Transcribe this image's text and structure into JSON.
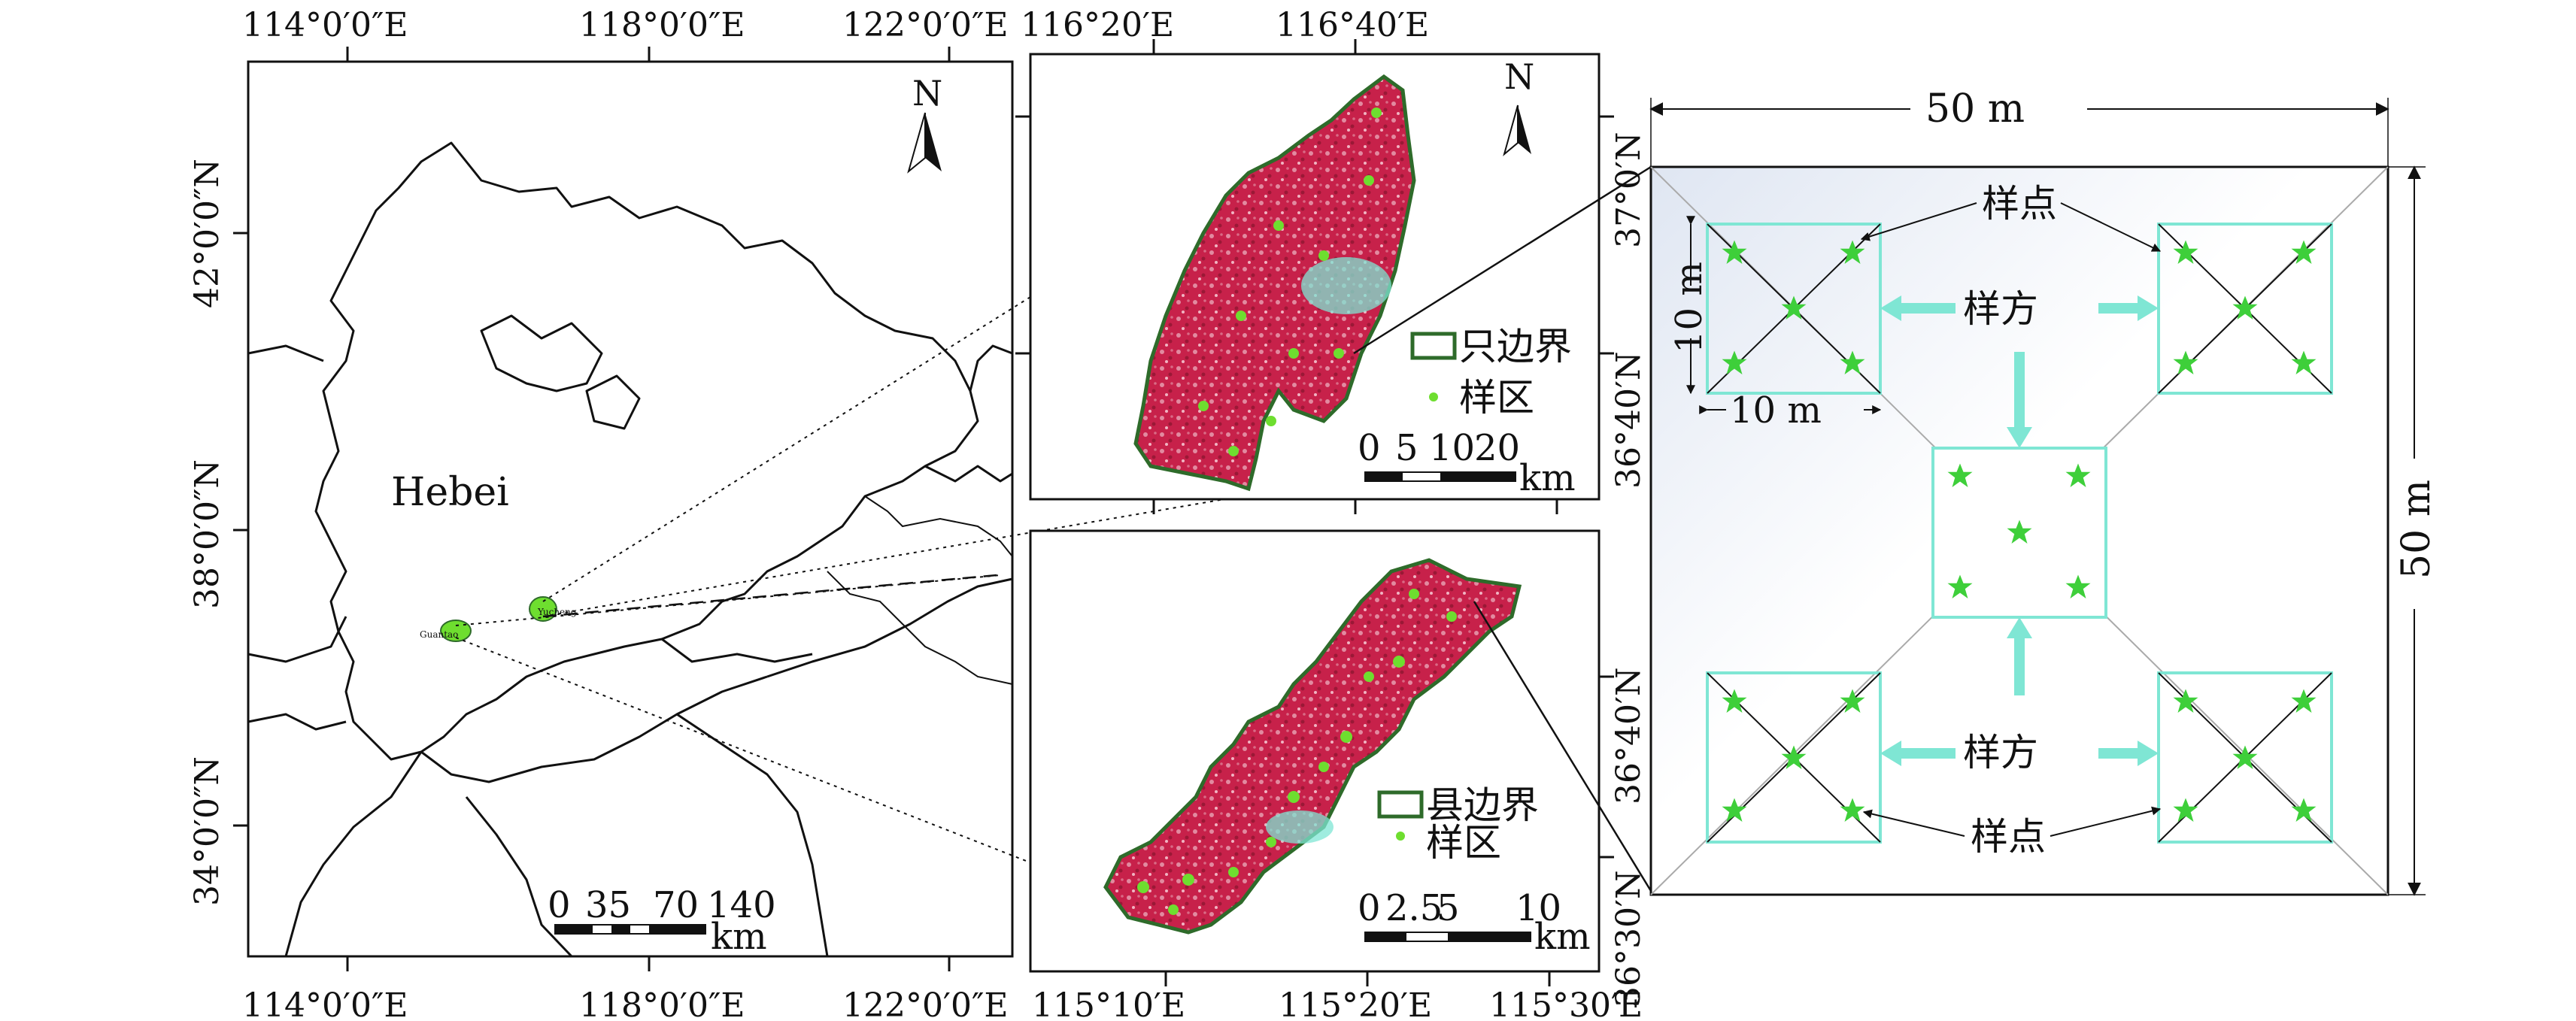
{
  "left_map": {
    "top_lon_labels": [
      "114°0′0″E",
      "118°0′0″E",
      "122°0′0″E"
    ],
    "bottom_lon_labels": [
      "114°0′0″E",
      "118°0′0″E",
      "122°0′0″E"
    ],
    "lat_labels": [
      "42°0′0″N",
      "38°0′0″N",
      "34°0′0″N"
    ],
    "province_label": "Hebei",
    "north_arrow": "N",
    "scalebar_ticks": [
      "0",
      "35",
      "70",
      "140"
    ],
    "scalebar_unit": "km",
    "city_labels": [
      "Guantao",
      "Yucheng"
    ]
  },
  "upper_inset": {
    "top_lon_labels": [
      "116°20′E",
      "116°40′E"
    ],
    "lat_labels": [
      "37°0′N",
      "36°40′N"
    ],
    "north_arrow": "N",
    "legend_boundary": "只边界",
    "legend_sample": "样区",
    "scalebar_ticks": [
      "0",
      "5",
      "10",
      "20"
    ],
    "scalebar_unit": "km"
  },
  "lower_inset": {
    "bottom_lon_labels": [
      "115°10′E",
      "115°20′E",
      "115°30′E"
    ],
    "lat_labels": [
      "36°40′N",
      "36°30′N"
    ],
    "legend_boundary": "县边界",
    "legend_sample": "样区",
    "scalebar_ticks": [
      "0",
      "2.5",
      "5",
      "10"
    ],
    "scalebar_unit": "km"
  },
  "plot_diagram": {
    "width_label": "50 m",
    "height_label": "50 m",
    "subplot_width_label": "10 m",
    "subplot_height_label": "10 m",
    "quadrat_label": "样方",
    "point_label": "样点"
  },
  "colors": {
    "quadrat_outline": "#7fe6d4",
    "arrow_fill": "#7fe6d4",
    "star": "#3ecf3a",
    "imagery_red": "#c7214a",
    "boundary_green": "#2e6b2a"
  }
}
